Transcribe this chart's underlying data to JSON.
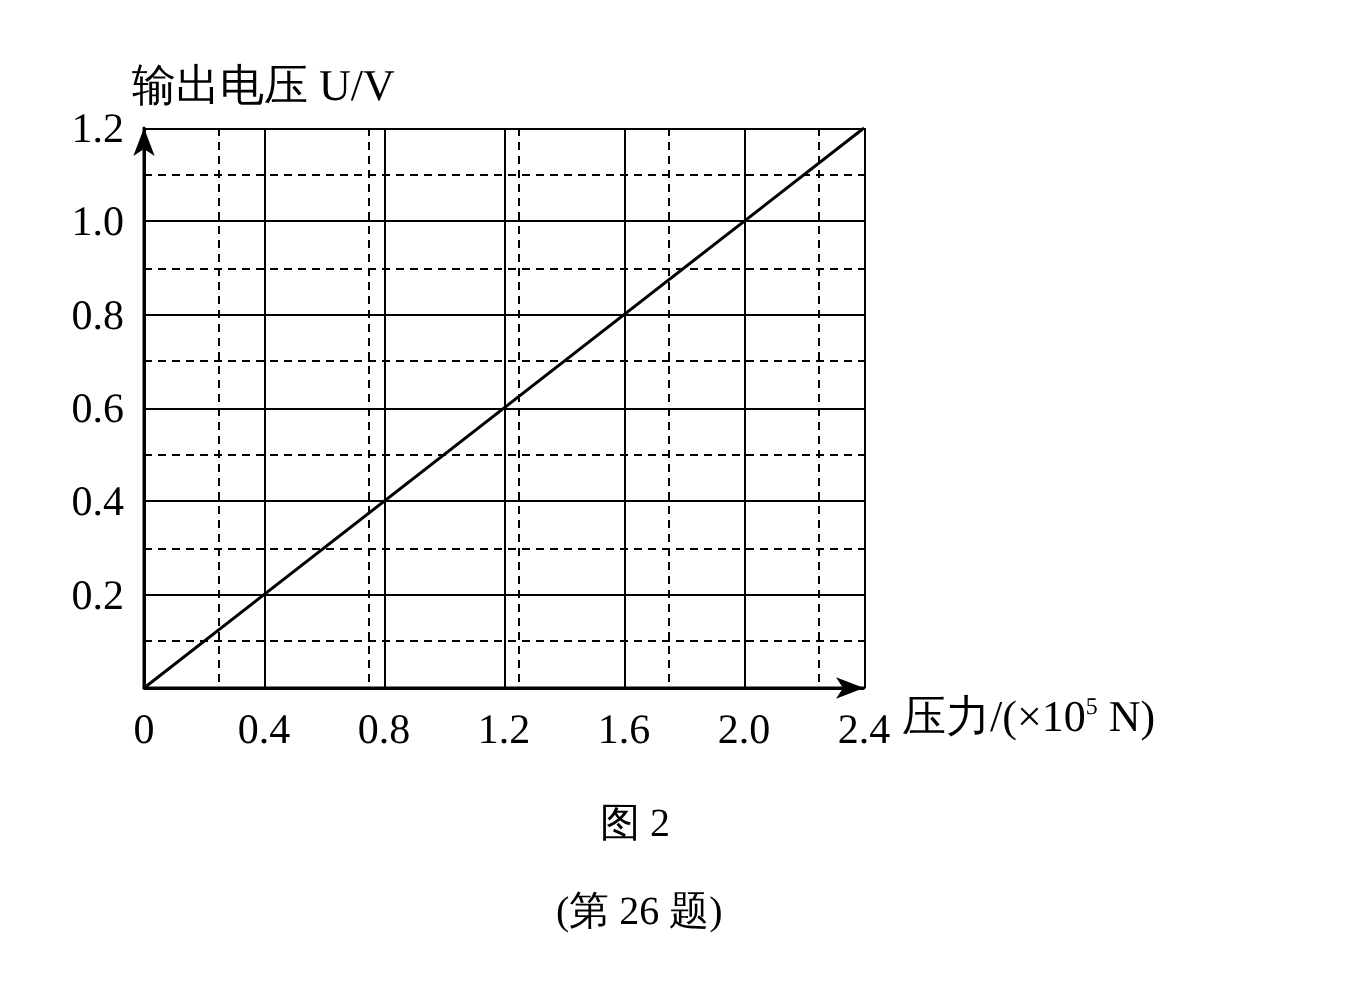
{
  "chart_data": {
    "type": "line",
    "xlabel": "压力/(×10$^{5}$ N)",
    "ylabel": "输出电压 U/V",
    "annotations": [
      "图 2",
      "(第 26 题)"
    ],
    "series": [
      {
        "color": "#000000",
        "x": [
          0,
          2.4
        ],
        "values": [
          0,
          1.2
        ]
      }
    ],
    "xlim": [
      0,
      2.4
    ],
    "xticks": [
      0,
      0.4,
      0.8,
      1.2,
      1.6,
      {
        "value": 2.0,
        "label": "2.0"
      },
      2.4
    ],
    "ylim": [
      0,
      1.2
    ],
    "yticks": [
      {
        "value": 0,
        "label": null
      },
      0.2,
      0.4,
      0.6,
      0.8,
      {
        "value": 1.0,
        "label": "1.0"
      },
      1.2
    ],
    "grid": true,
    "marker": "none",
    "line_style": "solid"
  }
}
